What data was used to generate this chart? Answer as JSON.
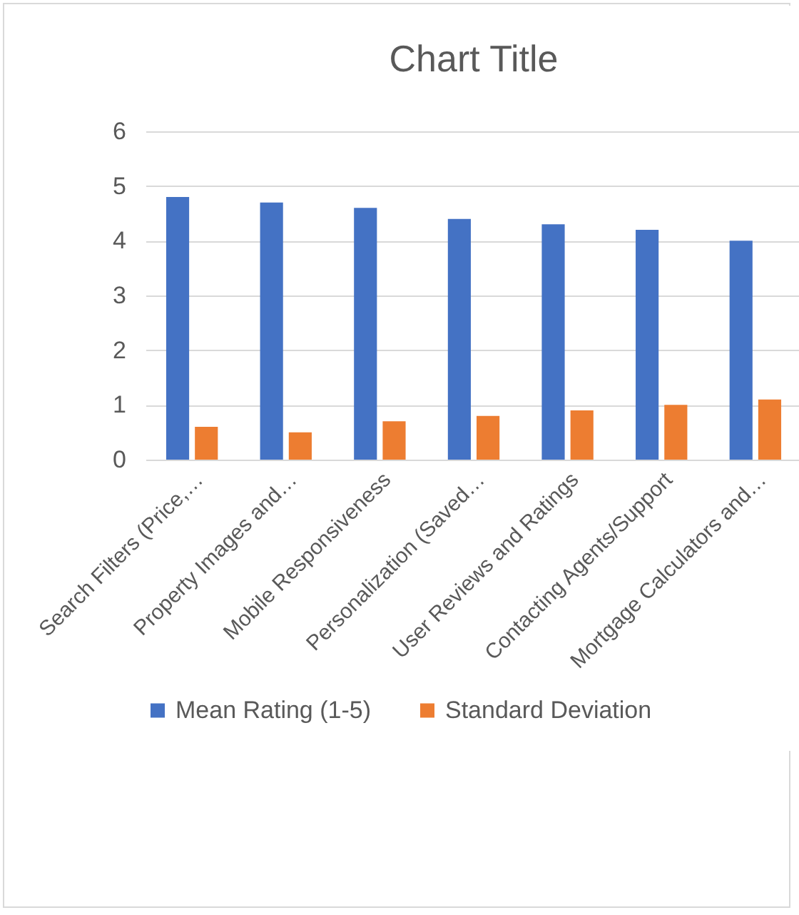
{
  "chart_data": {
    "type": "bar",
    "title": "Chart Title",
    "categories": [
      "Search Filters (Price,…",
      "Property Images and…",
      "Mobile Responsiveness",
      "Personalization (Saved…",
      "User Reviews and Ratings",
      "Contacting Agents/Support",
      "Mortgage Calculators and…"
    ],
    "series": [
      {
        "name": "Mean Rating (1-5)",
        "color": "#4472c4",
        "values": [
          4.8,
          4.7,
          4.6,
          4.4,
          4.3,
          4.2,
          4.0
        ]
      },
      {
        "name": "Standard Deviation",
        "color": "#ed7d31",
        "values": [
          0.6,
          0.5,
          0.7,
          0.8,
          0.9,
          1.0,
          1.1
        ]
      }
    ],
    "ylim": [
      0,
      6
    ],
    "yticks": [
      0,
      1,
      2,
      3,
      4,
      5,
      6
    ],
    "grid": "y",
    "legend": "bottom"
  }
}
